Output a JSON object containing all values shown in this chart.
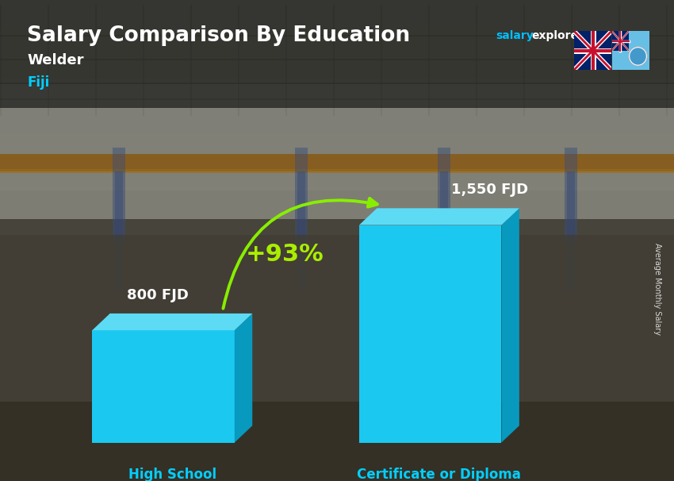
{
  "title": "Salary Comparison By Education",
  "subtitle_job": "Welder",
  "subtitle_location": "Fiji",
  "categories": [
    "High School",
    "Certificate or Diploma"
  ],
  "values": [
    800,
    1550
  ],
  "value_labels": [
    "800 FJD",
    "1,550 FJD"
  ],
  "pct_change": "+93%",
  "bar_face_color": "#1BC8F0",
  "bar_side_color": "#0899BE",
  "bar_top_color": "#5DDBF5",
  "ylabel_text": "Average Monthly Salary",
  "title_color": "#FFFFFF",
  "subtitle_job_color": "#FFFFFF",
  "subtitle_loc_color": "#00CFFF",
  "category_label_color": "#00CFFF",
  "value_label_color": "#FFFFFF",
  "pct_color": "#AAEE00",
  "website_color_salary": "#00BFFF",
  "website_color_explorer": "#FFFFFF",
  "website_color_com": "#FFFFFF",
  "arrow_color": "#88EE00",
  "bg_top_color": "#9BA8A0",
  "bg_mid_color": "#6B7870",
  "bg_bot_color": "#4A4A3A",
  "header_bg_color": "#000000",
  "header_alpha": 0.5
}
